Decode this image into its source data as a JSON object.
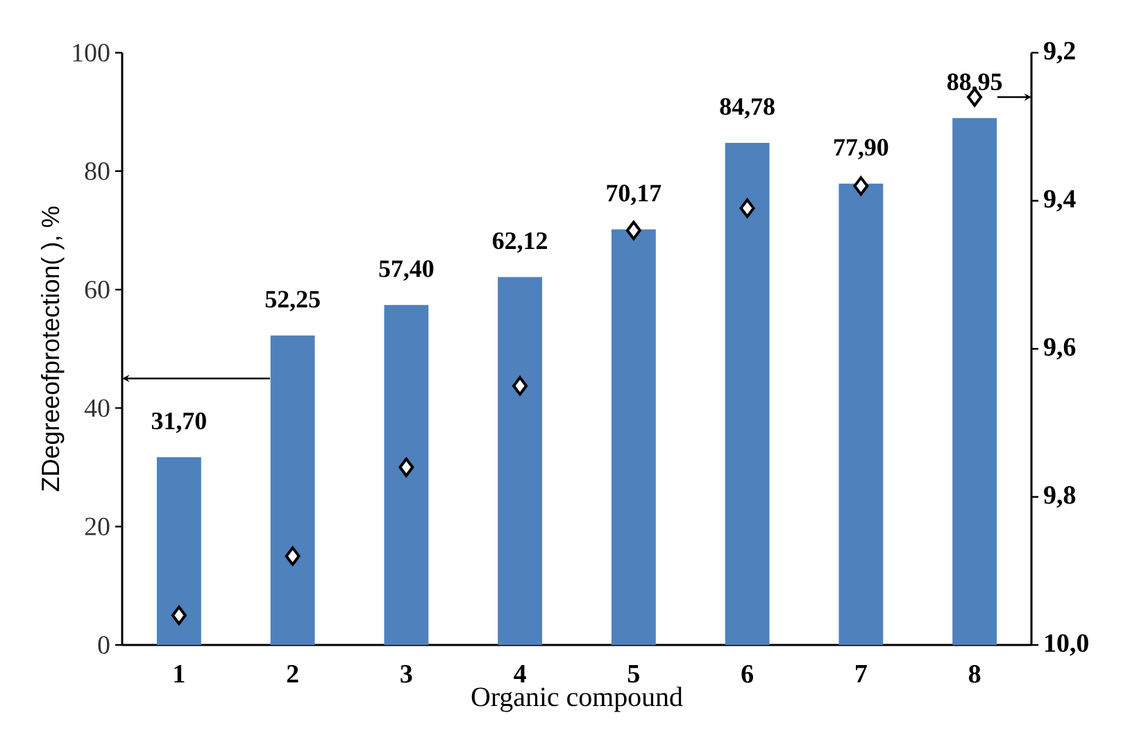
{
  "chart_data": {
    "type": "bar",
    "xlabel": "Organic compound",
    "ylabel": "ZDegreeofprotection( ), %",
    "categories": [
      "1",
      "2",
      "3",
      "4",
      "5",
      "6",
      "7",
      "8"
    ],
    "series": [
      {
        "color": "#4f81bd",
        "values": [
          31.7,
          52.25,
          57.4,
          62.12,
          70.17,
          84.78,
          77.9,
          88.95
        ],
        "value_labels": [
          "31,70",
          "52,25",
          "57,40",
          "62,12",
          "70,17",
          "84,78",
          "77,90",
          "88,95"
        ]
      },
      {
        "type": "scatter",
        "axis": "y2",
        "color": "#000000",
        "marker": "diamond",
        "values": [
          9.96,
          9.88,
          9.76,
          9.65,
          9.44,
          9.41,
          9.38,
          9.26
        ]
      }
    ],
    "ylim": [
      0,
      100
    ],
    "yticks": [
      0,
      20,
      40,
      60,
      80,
      100
    ],
    "y2lim": [
      10.0,
      9.2
    ],
    "y2ticks": [
      {
        "value": 9.2,
        "label": "9,2"
      },
      {
        "value": 9.4,
        "label": "9,4"
      },
      {
        "value": 9.6,
        "label": "9,6"
      },
      {
        "value": 9.8,
        "label": "9,8"
      },
      {
        "value": 10.0,
        "label": "10,0"
      }
    ],
    "grid": false
  }
}
